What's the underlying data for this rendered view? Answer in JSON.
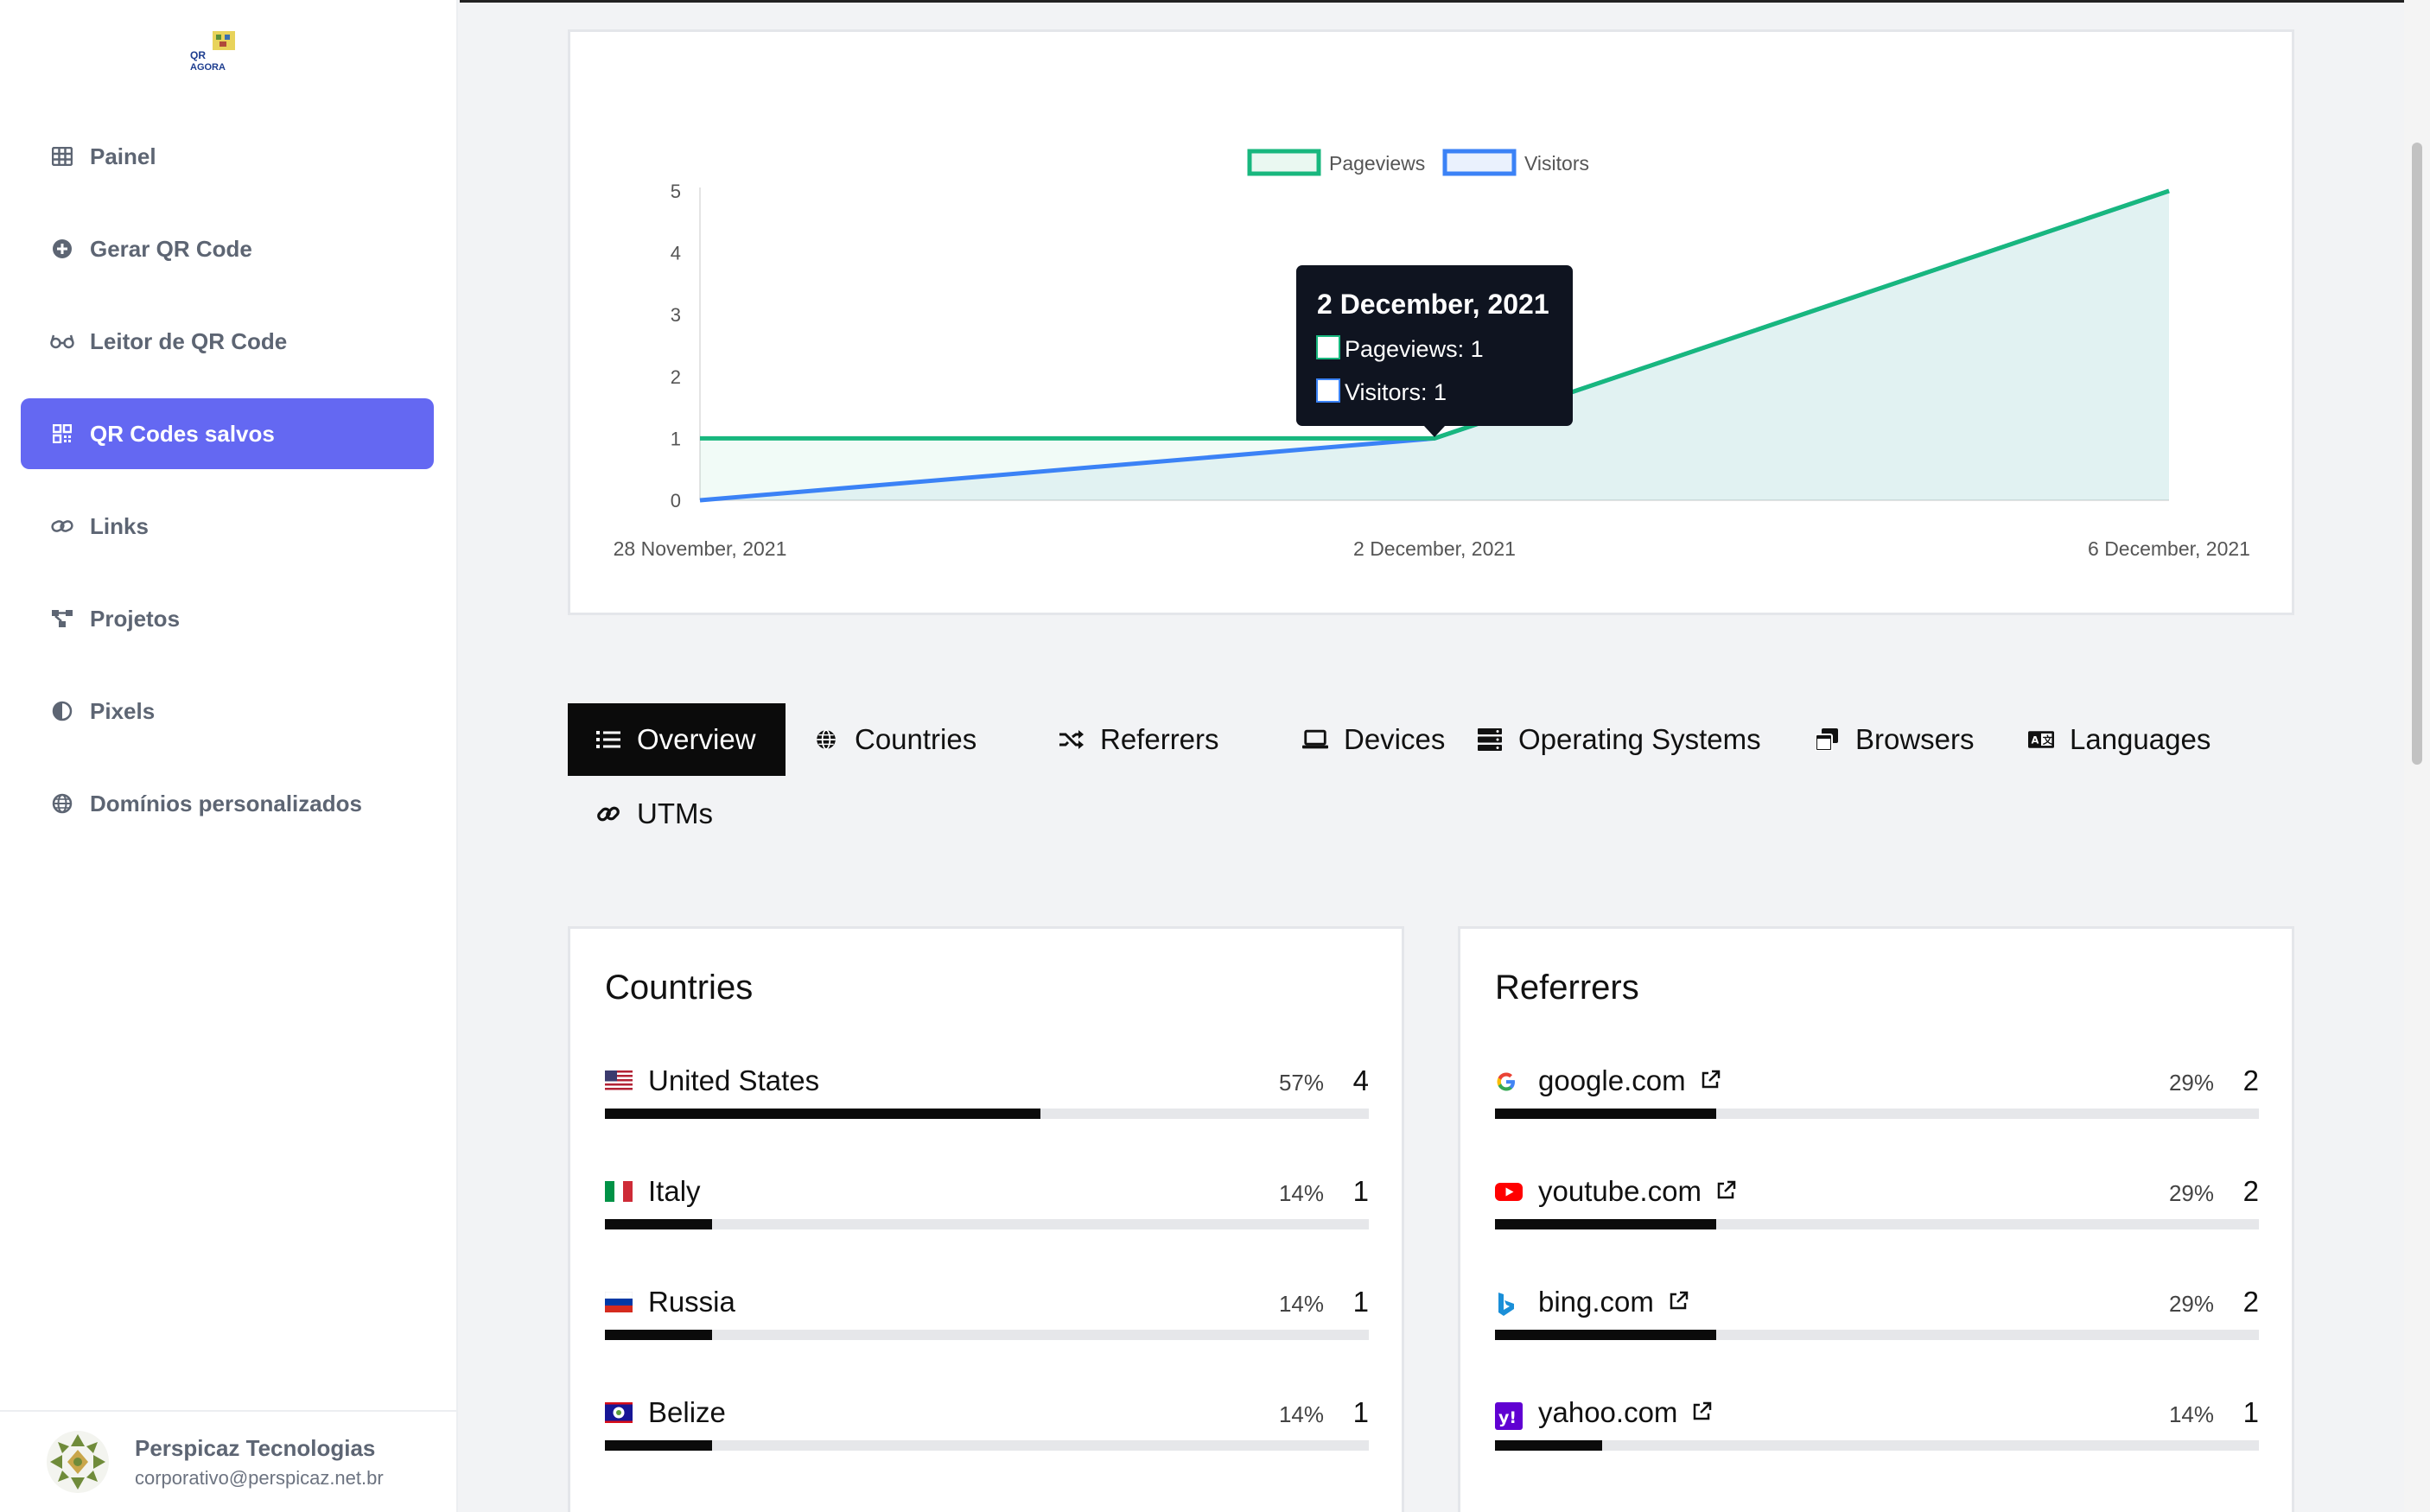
{
  "sidebar": {
    "logo_text": "QR AGORA",
    "items": [
      {
        "label": "Painel",
        "icon": "table-icon",
        "active": false
      },
      {
        "label": "Gerar QR Code",
        "icon": "plus-circle-icon",
        "active": false
      },
      {
        "label": "Leitor de QR Code",
        "icon": "glasses-icon",
        "active": false
      },
      {
        "label": "QR Codes salvos",
        "icon": "qrcode-icon",
        "active": true
      },
      {
        "label": "Links",
        "icon": "link-icon",
        "active": false
      },
      {
        "label": "Projetos",
        "icon": "project-diagram-icon",
        "active": false
      },
      {
        "label": "Pixels",
        "icon": "adjust-icon",
        "active": false
      },
      {
        "label": "Domínios personalizados",
        "icon": "globe-icon",
        "active": false
      }
    ],
    "user": {
      "name": "Perspicaz Tecnologias",
      "email": "corporativo@perspicaz.net.br"
    }
  },
  "chart_data": {
    "type": "line",
    "x": [
      "28 November, 2021",
      "2 December, 2021",
      "6 December, 2021"
    ],
    "x_tick_labels": [
      "28 November, 2021",
      "2 December, 2021",
      "6 December, 2021"
    ],
    "y_ticks": [
      "0",
      "1",
      "2",
      "3",
      "4",
      "5"
    ],
    "ylim": [
      0,
      5
    ],
    "series": [
      {
        "name": "Pageviews",
        "values": [
          1,
          1,
          5
        ],
        "color": "#18b77e"
      },
      {
        "name": "Visitors",
        "values": [
          0,
          1,
          5
        ],
        "color": "#3b82f6"
      }
    ],
    "legend_position": "top-center",
    "tooltip": {
      "title": "2 December, 2021",
      "lines": [
        "Pageviews: 1",
        "Visitors: 1"
      ]
    }
  },
  "tabs": [
    {
      "label": "Overview",
      "icon": "list-icon",
      "active": true
    },
    {
      "label": "Countries",
      "icon": "globe-icon",
      "active": false
    },
    {
      "label": "Referrers",
      "icon": "random-icon",
      "active": false
    },
    {
      "label": "Devices",
      "icon": "laptop-icon",
      "active": false
    },
    {
      "label": "Operating Systems",
      "icon": "server-icon",
      "active": false
    },
    {
      "label": "Browsers",
      "icon": "window-restore-icon",
      "active": false
    },
    {
      "label": "Languages",
      "icon": "language-icon",
      "active": false
    },
    {
      "label": "UTMs",
      "icon": "link-icon",
      "active": false
    }
  ],
  "countries": {
    "title": "Countries",
    "rows": [
      {
        "name": "United States",
        "flag": "us-flag-icon",
        "percent": "57%",
        "count": "4",
        "fraction": 0.57
      },
      {
        "name": "Italy",
        "flag": "it-flag-icon",
        "percent": "14%",
        "count": "1",
        "fraction": 0.14
      },
      {
        "name": "Russia",
        "flag": "ru-flag-icon",
        "percent": "14%",
        "count": "1",
        "fraction": 0.14
      },
      {
        "name": "Belize",
        "flag": "bz-flag-icon",
        "percent": "14%",
        "count": "1",
        "fraction": 0.14
      }
    ]
  },
  "referrers": {
    "title": "Referrers",
    "rows": [
      {
        "name": "google.com",
        "icon": "google-icon",
        "percent": "29%",
        "count": "2",
        "fraction": 0.29
      },
      {
        "name": "youtube.com",
        "icon": "youtube-icon",
        "percent": "29%",
        "count": "2",
        "fraction": 0.29
      },
      {
        "name": "bing.com",
        "icon": "bing-icon",
        "percent": "29%",
        "count": "2",
        "fraction": 0.29
      },
      {
        "name": "yahoo.com",
        "icon": "yahoo-icon",
        "percent": "14%",
        "count": "1",
        "fraction": 0.14
      }
    ]
  }
}
